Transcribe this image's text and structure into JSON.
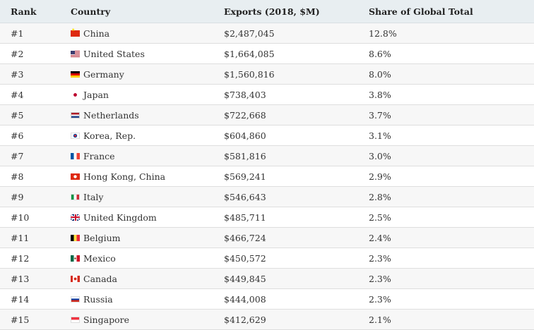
{
  "header": {
    "rank": "Rank",
    "country": "Country",
    "exports": "Exports (2018, $M)",
    "share": "Share of Global Total"
  },
  "rows": [
    {
      "rank": "#1",
      "country": "China",
      "flag": "china-flag-icon",
      "exports": "$2,487,045",
      "share": "12.8%"
    },
    {
      "rank": "#2",
      "country": "United States",
      "flag": "us-flag-icon",
      "exports": "$1,664,085",
      "share": "8.6%"
    },
    {
      "rank": "#3",
      "country": "Germany",
      "flag": "germany-flag-icon",
      "exports": "$1,560,816",
      "share": "8.0%"
    },
    {
      "rank": "#4",
      "country": "Japan",
      "flag": "japan-flag-icon",
      "exports": "$738,403",
      "share": "3.8%"
    },
    {
      "rank": "#5",
      "country": "Netherlands",
      "flag": "netherlands-flag-icon",
      "exports": "$722,668",
      "share": "3.7%"
    },
    {
      "rank": "#6",
      "country": "Korea, Rep.",
      "flag": "korea-flag-icon",
      "exports": "$604,860",
      "share": "3.1%"
    },
    {
      "rank": "#7",
      "country": "France",
      "flag": "france-flag-icon",
      "exports": "$581,816",
      "share": "3.0%"
    },
    {
      "rank": "#8",
      "country": "Hong Kong, China",
      "flag": "hong-kong-flag-icon",
      "exports": "$569,241",
      "share": "2.9%"
    },
    {
      "rank": "#9",
      "country": "Italy",
      "flag": "italy-flag-icon",
      "exports": "$546,643",
      "share": "2.8%"
    },
    {
      "rank": "#10",
      "country": "United Kingdom",
      "flag": "uk-flag-icon",
      "exports": "$485,711",
      "share": "2.5%"
    },
    {
      "rank": "#11",
      "country": "Belgium",
      "flag": "belgium-flag-icon",
      "exports": "$466,724",
      "share": "2.4%"
    },
    {
      "rank": "#12",
      "country": "Mexico",
      "flag": "mexico-flag-icon",
      "exports": "$450,572",
      "share": "2.3%"
    },
    {
      "rank": "#13",
      "country": "Canada",
      "flag": "canada-flag-icon",
      "exports": "$449,845",
      "share": "2.3%"
    },
    {
      "rank": "#14",
      "country": "Russia",
      "flag": "russia-flag-icon",
      "exports": "$444,008",
      "share": "2.3%"
    },
    {
      "rank": "#15",
      "country": "Singapore",
      "flag": "singapore-flag-icon",
      "exports": "$412,629",
      "share": "2.1%"
    }
  ],
  "colors": {
    "header_bg": "#e8eef1",
    "alt_row_bg": "#f7f7f7",
    "border": "#dedede",
    "text": "#333333"
  }
}
